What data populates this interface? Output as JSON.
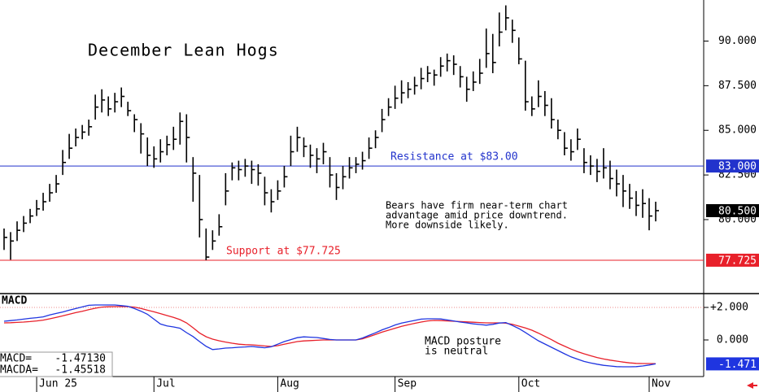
{
  "chart_data": {
    "type": "ohlc",
    "title": "December Lean Hogs",
    "color": "#000000",
    "categories": [
      null,
      null,
      null,
      null,
      null,
      "Jun 25",
      null,
      null,
      null,
      null,
      null,
      null,
      null,
      null,
      null,
      null,
      null,
      null,
      null,
      null,
      null,
      null,
      null,
      "Jul",
      null,
      null,
      null,
      null,
      null,
      null,
      null,
      null,
      null,
      null,
      null,
      null,
      null,
      null,
      null,
      null,
      null,
      null,
      "Aug",
      null,
      null,
      null,
      null,
      null,
      null,
      null,
      null,
      null,
      null,
      null,
      null,
      null,
      null,
      null,
      null,
      null,
      "Sep",
      null,
      null,
      null,
      null,
      null,
      null,
      null,
      null,
      null,
      null,
      null,
      null,
      null,
      null,
      null,
      null,
      null,
      null,
      "Oct",
      null,
      null,
      null,
      null,
      null,
      null,
      null,
      null,
      null,
      null,
      null,
      null,
      null,
      null,
      null,
      null,
      null,
      null,
      null,
      "Nov",
      null
    ],
    "high": [
      79.5,
      79.3,
      79.9,
      80.2,
      80.6,
      81.1,
      81.5,
      82.0,
      82.5,
      83.9,
      84.8,
      85.1,
      85.3,
      85.6,
      87.0,
      87.3,
      86.9,
      87.1,
      87.4,
      86.6,
      85.9,
      85.4,
      84.6,
      84.1,
      84.5,
      84.7,
      85.2,
      86.0,
      85.9,
      83.5,
      82.5,
      79.5,
      79.4,
      80.3,
      82.6,
      83.2,
      83.3,
      83.4,
      83.3,
      83.1,
      82.4,
      81.7,
      82.2,
      83.0,
      84.7,
      85.2,
      84.6,
      84.2,
      84.0,
      84.3,
      83.5,
      82.6,
      83.0,
      83.5,
      83.5,
      83.8,
      84.6,
      85.0,
      86.2,
      86.8,
      87.5,
      87.8,
      87.7,
      88.0,
      88.5,
      88.6,
      88.4,
      89.1,
      89.3,
      89.2,
      88.6,
      88.0,
      88.3,
      89.0,
      90.7,
      90.4,
      91.6,
      92.0,
      91.2,
      90.2,
      88.9,
      86.9,
      87.8,
      87.2,
      86.8,
      85.6,
      84.9,
      84.5,
      85.1,
      84.0,
      83.6,
      83.4,
      84.0,
      83.3,
      82.8,
      82.5,
      82.0,
      81.6,
      81.7,
      81.2,
      81.0
    ],
    "low": [
      78.3,
      77.75,
      78.8,
      79.3,
      79.8,
      80.2,
      80.5,
      81.0,
      81.5,
      82.5,
      83.4,
      84.1,
      84.5,
      84.7,
      85.6,
      86.0,
      85.8,
      86.0,
      86.3,
      85.8,
      84.9,
      83.7,
      83.0,
      82.9,
      83.2,
      83.6,
      83.9,
      84.2,
      83.2,
      81.0,
      79.0,
      77.725,
      78.3,
      79.1,
      80.8,
      82.2,
      82.2,
      82.4,
      82.0,
      81.9,
      80.8,
      80.4,
      81.1,
      81.8,
      83.0,
      83.8,
      83.5,
      82.9,
      82.6,
      83.1,
      81.8,
      81.1,
      81.7,
      82.3,
      82.6,
      82.8,
      83.4,
      84.0,
      84.9,
      85.8,
      86.2,
      86.5,
      86.8,
      87.0,
      87.3,
      87.7,
      87.5,
      88.0,
      88.3,
      88.1,
      87.4,
      86.6,
      87.2,
      87.6,
      88.5,
      88.2,
      89.7,
      90.6,
      89.9,
      88.7,
      86.1,
      85.8,
      86.3,
      85.8,
      85.1,
      84.5,
      83.6,
      83.3,
      83.9,
      82.6,
      82.5,
      82.1,
      82.3,
      81.7,
      81.3,
      80.7,
      80.6,
      80.2,
      80.1,
      79.4,
      79.9
    ],
    "close": [
      79.0,
      78.8,
      79.4,
      79.8,
      80.2,
      80.6,
      81.0,
      81.5,
      82.0,
      83.2,
      84.0,
      84.6,
      84.9,
      85.2,
      86.3,
      86.7,
      86.2,
      86.6,
      86.9,
      86.1,
      85.6,
      84.8,
      83.6,
      83.4,
      83.8,
      84.2,
      84.5,
      85.5,
      84.6,
      82.6,
      80.0,
      77.9,
      78.8,
      79.6,
      81.6,
      82.9,
      82.8,
      83.0,
      82.8,
      82.6,
      81.5,
      81.0,
      81.6,
      82.4,
      83.8,
      84.6,
      84.1,
      83.6,
      83.4,
      83.8,
      82.5,
      81.8,
      82.4,
      82.9,
      83.1,
      83.3,
      84.0,
      84.6,
      85.6,
      86.3,
      86.8,
      87.1,
      87.3,
      87.5,
      87.9,
      88.2,
      88.1,
      88.6,
      88.9,
      88.7,
      88.0,
      87.3,
      87.7,
      88.2,
      89.3,
      88.8,
      90.5,
      91.3,
      90.6,
      89.0,
      86.6,
      86.2,
      86.9,
      86.4,
      85.6,
      85.0,
      84.0,
      83.8,
      84.5,
      83.2,
      83.0,
      82.7,
      82.9,
      82.3,
      82.0,
      81.6,
      81.2,
      80.8,
      80.9,
      80.2,
      80.5
    ],
    "ylim": [
      75.9,
      92.3
    ],
    "yticks": [
      {
        "value": 80,
        "label": "80.000"
      },
      {
        "value": 82.5,
        "label": "82.500"
      },
      {
        "value": 85,
        "label": "85.000"
      },
      {
        "value": 87.5,
        "label": "87.500"
      },
      {
        "value": 90,
        "label": "90.000"
      }
    ],
    "hlines": [
      {
        "value": 83,
        "label": "83.000",
        "text": "Resistance at $83.00",
        "color": "#2233cc"
      },
      {
        "value": 77.725,
        "label": "77.725",
        "text": "Support at $77.725",
        "color": "#e8202a"
      }
    ],
    "last": {
      "value": 80.5,
      "label": "80.500"
    },
    "annotation": [
      "Bears have firm near-term chart",
      "advantage amid price downtrend.",
      "More downside likely."
    ],
    "macd": {
      "type": "line",
      "title": "MACD",
      "ylim": [
        -2.2,
        2.8
      ],
      "yticks": [
        {
          "value": 2,
          "label": "+2.000"
        },
        {
          "value": 0,
          "label": "0.000"
        }
      ],
      "series": [
        {
          "name": "MACD",
          "color": "#1f35e0",
          "values": [
            1.15,
            1.19,
            1.23,
            1.28,
            1.33,
            1.37,
            1.42,
            1.54,
            1.63,
            1.72,
            1.83,
            1.93,
            2.03,
            2.13,
            2.15,
            2.15,
            2.15,
            2.15,
            2.11,
            2.07,
            1.93,
            1.77,
            1.58,
            1.28,
            0.98,
            0.86,
            0.8,
            0.72,
            0.45,
            0.21,
            -0.1,
            -0.39,
            -0.59,
            -0.55,
            -0.5,
            -0.48,
            -0.45,
            -0.43,
            -0.4,
            -0.44,
            -0.48,
            -0.42,
            -0.26,
            -0.1,
            0.02,
            0.14,
            0.19,
            0.17,
            0.15,
            0.09,
            0.03,
            0,
            0,
            0,
            0,
            0.12,
            0.28,
            0.44,
            0.62,
            0.76,
            0.92,
            1.04,
            1.12,
            1.2,
            1.28,
            1.3,
            1.3,
            1.29,
            1.23,
            1.17,
            1.1,
            1.05,
            0.99,
            0.95,
            0.91,
            0.96,
            1.04,
            1.07,
            0.89,
            0.7,
            0.46,
            0.2,
            -0.05,
            -0.25,
            -0.45,
            -0.65,
            -0.85,
            -1.04,
            -1.18,
            -1.32,
            -1.41,
            -1.49,
            -1.56,
            -1.6,
            -1.64,
            -1.65,
            -1.65,
            -1.64,
            -1.6,
            -1.54,
            -1.471
          ]
        },
        {
          "name": "MACDA",
          "color": "#e8202a",
          "values": [
            1.05,
            1.06,
            1.08,
            1.1,
            1.13,
            1.17,
            1.22,
            1.3,
            1.39,
            1.48,
            1.58,
            1.68,
            1.76,
            1.86,
            1.95,
            2.02,
            2.04,
            2.05,
            2.05,
            2.05,
            2.02,
            1.94,
            1.83,
            1.73,
            1.62,
            1.5,
            1.39,
            1.25,
            1.05,
            0.75,
            0.43,
            0.2,
            0.05,
            -0.05,
            -0.13,
            -0.2,
            -0.26,
            -0.29,
            -0.3,
            -0.33,
            -0.37,
            -0.4,
            -0.35,
            -0.26,
            -0.18,
            -0.1,
            -0.06,
            -0.04,
            -0.02,
            0,
            0,
            0,
            0,
            0,
            0,
            0.07,
            0.2,
            0.34,
            0.48,
            0.6,
            0.72,
            0.84,
            0.93,
            1.02,
            1.1,
            1.17,
            1.2,
            1.19,
            1.17,
            1.15,
            1.13,
            1.11,
            1.09,
            1.07,
            1.05,
            1.05,
            1.05,
            1.03,
            0.96,
            0.85,
            0.74,
            0.6,
            0.42,
            0.22,
            0.02,
            -0.2,
            -0.38,
            -0.56,
            -0.72,
            -0.85,
            -0.97,
            -1.08,
            -1.17,
            -1.24,
            -1.3,
            -1.36,
            -1.41,
            -1.44,
            -1.45,
            -1.45,
            -1.455
          ]
        }
      ],
      "readout": [
        {
          "name": "MACD=",
          "text": "-1.47130"
        },
        {
          "name": "MACDA=",
          "text": "-1.45518"
        }
      ],
      "last": {
        "value": -1.471,
        "label": "-1.471"
      },
      "annotation": [
        "MACD posture",
        "is neutral"
      ]
    }
  }
}
